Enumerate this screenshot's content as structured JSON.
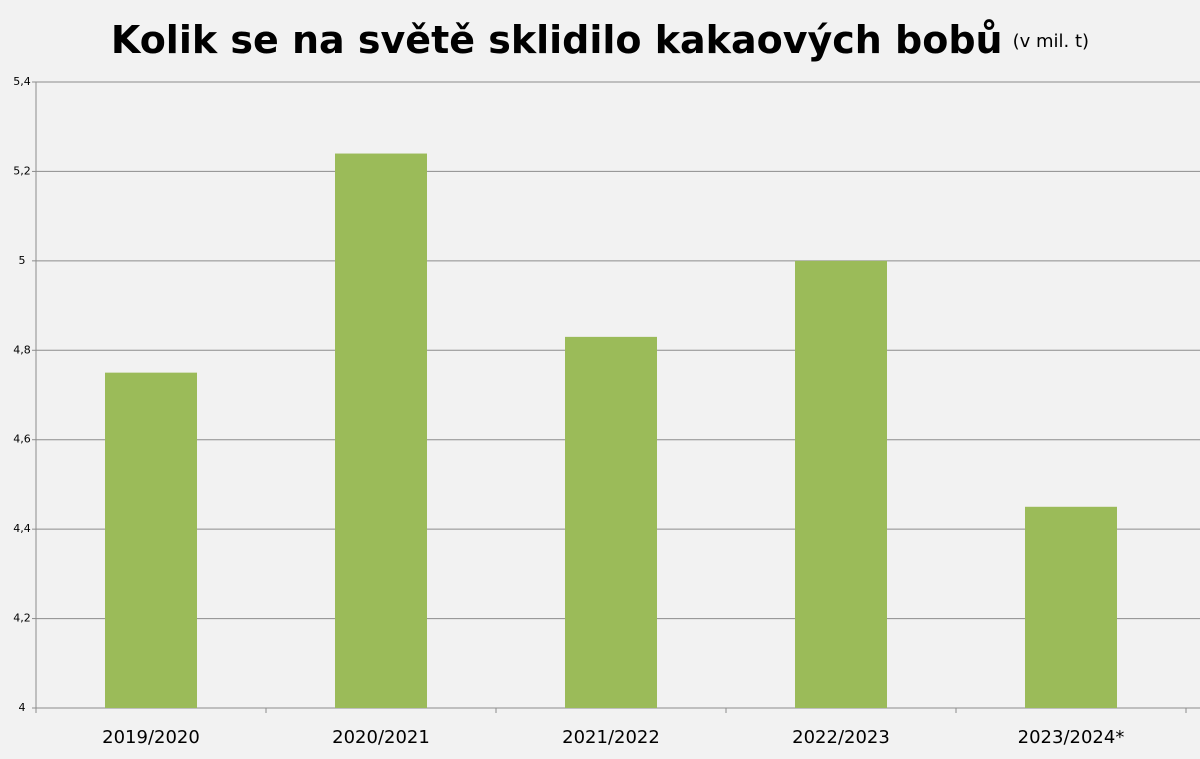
{
  "chart_data": {
    "type": "bar",
    "title": "Kolik se na světě sklidilo kakaových bobů",
    "subtitle": "(v mil. t)",
    "categories": [
      "2019/2020",
      "2020/2021",
      "2021/2022",
      "2022/2023",
      "2023/2024*"
    ],
    "values": [
      4.75,
      5.24,
      4.83,
      5.0,
      4.45
    ],
    "color": "#9bbb59",
    "ylim": [
      4,
      5.4
    ],
    "yticks": [
      4,
      {
        "value": 4.2,
        "label": "4,2"
      },
      {
        "value": 4.4,
        "label": "4,4"
      },
      {
        "value": 4.6,
        "label": "4,6"
      },
      {
        "value": 4.8,
        "label": "4,8"
      },
      5,
      {
        "value": 5.2,
        "label": "5,2"
      },
      {
        "value": 5.4,
        "label": "5,4"
      }
    ],
    "grid": true
  }
}
